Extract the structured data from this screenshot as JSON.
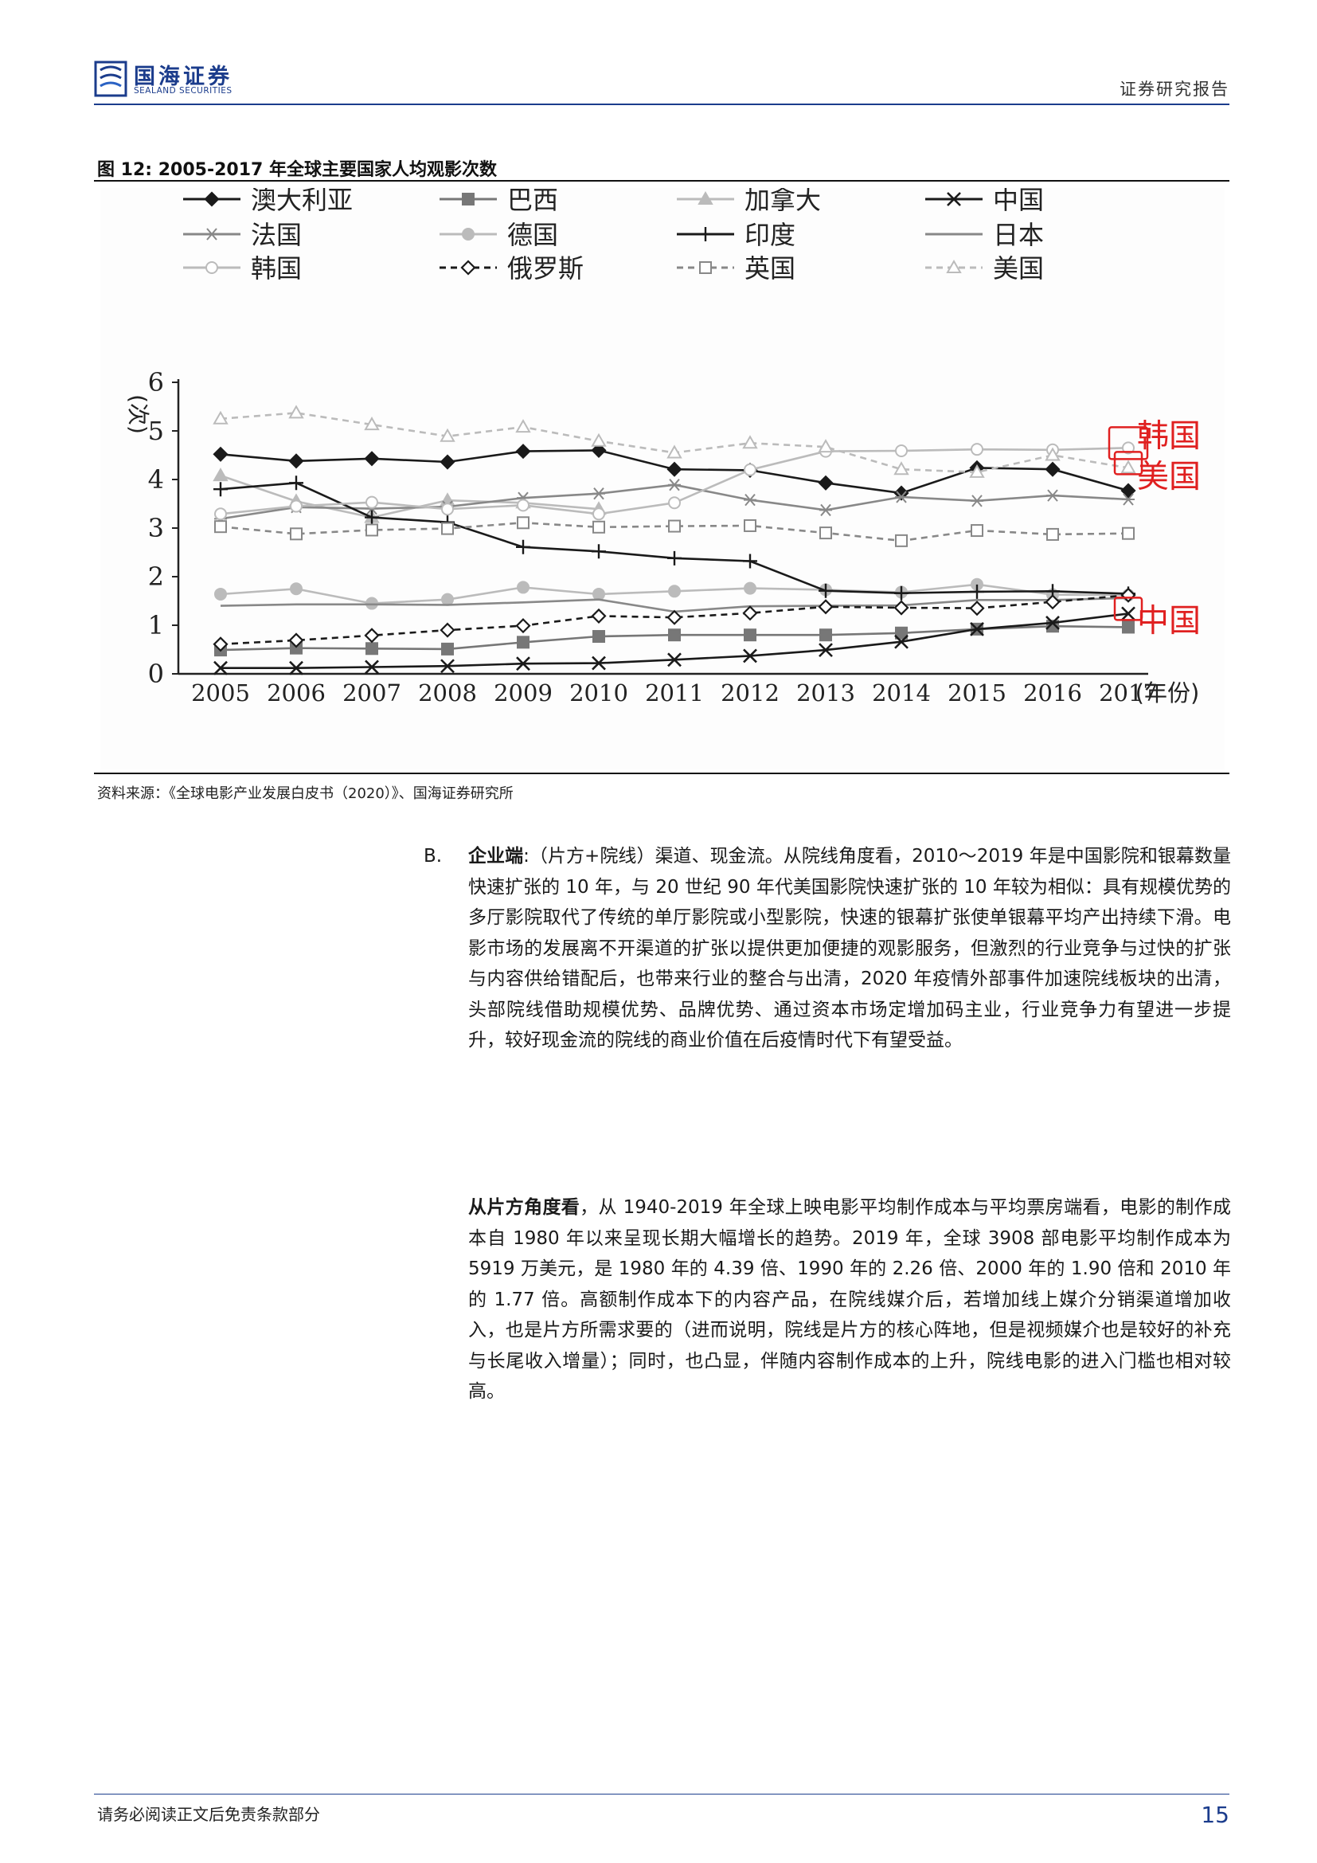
{
  "header": {
    "logo_cn": "国海证券",
    "logo_en": "SEALAND SECURITIES",
    "report_type": "证券研究报告"
  },
  "figure": {
    "title": "图 12:  2005-2017 年全球主要国家人均观影次数",
    "source": "资料来源：《全球电影产业发展白皮书（2020）》、国海证券研究所",
    "annotations": {
      "korea": "韩国",
      "usa": "美国",
      "china": "中国"
    }
  },
  "chart_data": {
    "type": "line",
    "title": "",
    "xlabel": "(年份)",
    "ylabel": "(次)",
    "ylim": [
      0,
      6
    ],
    "yticks": [
      0,
      1,
      2,
      3,
      4,
      5,
      6
    ],
    "categories": [
      "2005",
      "2006",
      "2007",
      "2008",
      "2009",
      "2010",
      "2011",
      "2012",
      "2013",
      "2014",
      "2015",
      "2016",
      "2017"
    ],
    "legend_position": "top",
    "series": [
      {
        "name": "澳大利亚",
        "color": "#1a1a1a",
        "dash": "",
        "marker": "diamond-filled",
        "values": [
          4.52,
          4.38,
          4.43,
          4.36,
          4.58,
          4.6,
          4.21,
          4.19,
          3.93,
          3.72,
          4.24,
          4.21,
          3.77
        ]
      },
      {
        "name": "巴西",
        "color": "#777777",
        "dash": "",
        "marker": "square-filled",
        "values": [
          0.49,
          0.53,
          0.52,
          0.51,
          0.65,
          0.77,
          0.8,
          0.8,
          0.8,
          0.84,
          0.92,
          0.98,
          0.96
        ]
      },
      {
        "name": "加拿大",
        "color": "#bbbbbb",
        "dash": "",
        "marker": "triangle-filled",
        "values": [
          4.08,
          3.55,
          3.22,
          3.57,
          3.52,
          3.39,
          null,
          null,
          null,
          null,
          null,
          null,
          null
        ]
      },
      {
        "name": "中国",
        "color": "#1a1a1a",
        "dash": "",
        "marker": "x",
        "values": [
          0.12,
          0.12,
          0.14,
          0.16,
          0.21,
          0.22,
          0.29,
          0.37,
          0.49,
          0.66,
          0.92,
          1.05,
          1.24
        ]
      },
      {
        "name": "法国",
        "color": "#888888",
        "dash": "",
        "marker": "asterisk",
        "values": [
          3.19,
          3.43,
          3.4,
          3.44,
          3.62,
          3.71,
          3.89,
          3.58,
          3.37,
          3.64,
          3.56,
          3.67,
          3.59
        ]
      },
      {
        "name": "德国",
        "color": "#bbbbbb",
        "dash": "",
        "marker": "circle-filled",
        "values": [
          1.64,
          1.75,
          1.45,
          1.53,
          1.78,
          1.64,
          1.7,
          1.76,
          1.73,
          1.68,
          1.84,
          1.63,
          1.62
        ]
      },
      {
        "name": "印度",
        "color": "#1a1a1a",
        "dash": "",
        "marker": "plus",
        "values": [
          3.8,
          3.93,
          3.22,
          3.12,
          2.61,
          2.52,
          2.38,
          2.32,
          1.71,
          1.66,
          1.69,
          1.7,
          1.65
        ]
      },
      {
        "name": "日本",
        "color": "#888888",
        "dash": "",
        "marker": "none",
        "values": [
          1.4,
          1.43,
          1.43,
          1.42,
          1.47,
          1.53,
          1.28,
          1.39,
          1.4,
          1.41,
          1.52,
          1.52,
          1.56
        ]
      },
      {
        "name": "韩国",
        "color": "#bbbbbb",
        "dash": "",
        "marker": "circle-open",
        "values": [
          3.29,
          3.45,
          3.53,
          3.39,
          3.47,
          3.29,
          3.52,
          4.2,
          4.58,
          4.59,
          4.62,
          4.61,
          4.65
        ]
      },
      {
        "name": "俄罗斯",
        "color": "#1a1a1a",
        "dash": "8,6",
        "marker": "diamond-open",
        "values": [
          0.61,
          0.69,
          0.79,
          0.9,
          0.99,
          1.19,
          1.16,
          1.25,
          1.38,
          1.36,
          1.35,
          1.48,
          1.62
        ]
      },
      {
        "name": "英国",
        "color": "#888888",
        "dash": "8,6",
        "marker": "square-open",
        "values": [
          3.03,
          2.88,
          2.96,
          2.99,
          3.11,
          3.02,
          3.04,
          3.05,
          2.9,
          2.74,
          2.95,
          2.87,
          2.89
        ]
      },
      {
        "name": "美国",
        "color": "#bbbbbb",
        "dash": "8,6",
        "marker": "triangle-open",
        "values": [
          5.25,
          5.37,
          5.13,
          4.89,
          5.08,
          4.79,
          4.55,
          4.75,
          4.67,
          4.21,
          4.15,
          4.5,
          4.24
        ]
      }
    ]
  },
  "body": {
    "bullet": "B.",
    "p1_bold": "企业端",
    "p1_text": ":（片方+院线）渠道、现金流。从院线角度看，2010～2019 年是中国影院和银幕数量快速扩张的 10 年，与 20 世纪 90 年代美国影院快速扩张的 10 年较为相似：具有规模优势的多厅影院取代了传统的单厅影院或小型影院，快速的银幕扩张使单银幕平均产出持续下滑。电影市场的发展离不开渠道的扩张以提供更加便捷的观影服务，但激烈的行业竞争与过快的扩张与内容供给错配后，也带来行业的整合与出清，2020 年疫情外部事件加速院线板块的出清，头部院线借助规模优势、品牌优势、通过资本市场定增加码主业，行业竞争力有望进一步提升，较好现金流的院线的商业价值在后疫情时代下有望受益。",
    "p2_bold": "从片方角度看",
    "p2_text": "，从 1940-2019 年全球上映电影平均制作成本与平均票房端看，电影的制作成本自 1980 年以来呈现长期大幅增长的趋势。2019 年，全球 3908 部电影平均制作成本为 5919 万美元，是 1980 年的 4.39 倍、1990 年的 2.26 倍、2000 年的 1.90 倍和 2010 年的 1.77 倍。高额制作成本下的内容产品，在院线媒介后，若增加线上媒介分销渠道增加收入，也是片方所需求要的（进而说明，院线是片方的核心阵地，但是视频媒介也是较好的补充与长尾收入增量）；同时，也凸显，伴随内容制作成本的上升，院线电影的进入门槛也相对较高。"
  },
  "footer": {
    "disclaimer": "请务必阅读正文后免责条款部分",
    "page_number": "15"
  }
}
